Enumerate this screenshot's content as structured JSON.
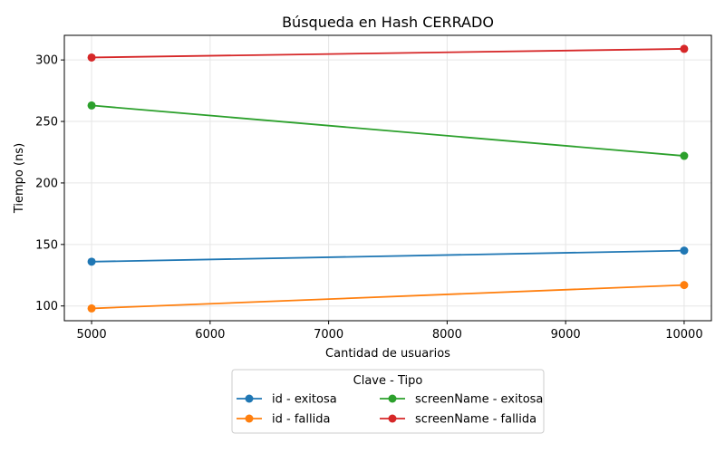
{
  "chart_data": {
    "type": "line",
    "title": "Búsqueda en Hash CERRADO",
    "xlabel": "Cantidad de usuarios",
    "ylabel": "Tiempo (ns)",
    "x": [
      5000,
      10000
    ],
    "xlim": [
      4770,
      10230
    ],
    "ylim": [
      88,
      320
    ],
    "xticks": [
      5000,
      6000,
      7000,
      8000,
      9000,
      10000
    ],
    "yticks": [
      100,
      150,
      200,
      250,
      300
    ],
    "grid": true,
    "legend": {
      "title": "Clave - Tipo",
      "placement": "below",
      "columns": 2
    },
    "series": [
      {
        "name": "id - exitosa",
        "values": [
          136,
          145
        ],
        "color": "#1f77b4"
      },
      {
        "name": "id - fallida",
        "values": [
          98,
          117
        ],
        "color": "#ff7f0e"
      },
      {
        "name": "screenName - exitosa",
        "values": [
          263,
          222
        ],
        "color": "#2ca02c"
      },
      {
        "name": "screenName - fallida",
        "values": [
          302,
          309
        ],
        "color": "#d62728"
      }
    ]
  }
}
